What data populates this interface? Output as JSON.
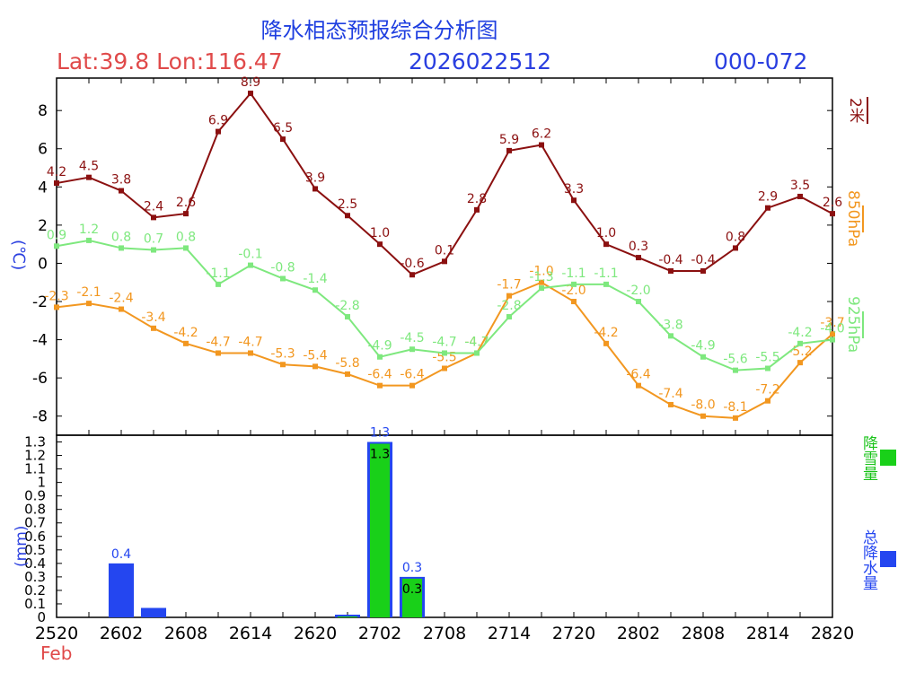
{
  "header": {
    "title": "降水相态预报综合分析图",
    "latlon": "Lat:39.8  Lon:116.47",
    "date": "2026022512",
    "range": "000-072"
  },
  "axes": {
    "temp_unit": "(℃)",
    "precip_unit": "(mm)",
    "month": "Feb"
  },
  "legend": {
    "t2m": "2米",
    "t850": "850hPa",
    "t925": "925hPa",
    "snow": "降雪量",
    "total": "总降水量"
  },
  "colors": {
    "t2m": "#8b1010",
    "t850": "#f29720",
    "t925": "#7ee87e",
    "snow": "#19d019",
    "total": "#2446f0"
  },
  "chart_data": [
    {
      "type": "line",
      "ylabel": "(℃)",
      "ylim": [
        -9,
        9.7
      ],
      "yticks": [
        -8,
        -6,
        -4,
        -2,
        0,
        2,
        4,
        6,
        8
      ],
      "x": [
        "2520",
        "2523",
        "2602",
        "2605",
        "2608",
        "2611",
        "2614",
        "2617",
        "2620",
        "2623",
        "2702",
        "2705",
        "2708",
        "2711",
        "2714",
        "2717",
        "2720",
        "2723",
        "2802",
        "2805",
        "2808",
        "2811",
        "2814",
        "2817",
        "2820"
      ],
      "series": [
        {
          "name": "2米",
          "key": "t2m",
          "values": [
            4.2,
            4.5,
            3.8,
            2.4,
            2.6,
            6.9,
            8.9,
            6.5,
            3.9,
            2.5,
            1.0,
            -0.6,
            0.1,
            2.8,
            5.9,
            6.2,
            3.3,
            1.0,
            0.3,
            -0.4,
            -0.4,
            0.8,
            2.9,
            3.5,
            2.6
          ]
        },
        {
          "name": "850hPa",
          "key": "t850",
          "values": [
            -2.3,
            -2.1,
            -2.4,
            -3.4,
            -4.2,
            -4.7,
            -4.7,
            -5.3,
            -5.4,
            -5.8,
            -6.4,
            -6.4,
            -5.5,
            -4.7,
            -1.7,
            -1.0,
            -2.0,
            -4.2,
            -6.4,
            -7.4,
            -8.0,
            -8.1,
            -7.2,
            -5.2,
            -3.7
          ]
        },
        {
          "name": "925hPa",
          "key": "t925",
          "values": [
            0.9,
            1.2,
            0.8,
            0.7,
            0.8,
            -1.1,
            -0.1,
            -0.8,
            -1.4,
            -2.8,
            -4.9,
            -4.5,
            -4.7,
            -4.7,
            -2.8,
            -1.3,
            -1.1,
            -1.1,
            -2.0,
            -3.8,
            -4.9,
            -5.6,
            -5.5,
            -4.2,
            -4.0
          ]
        }
      ]
    },
    {
      "type": "bar",
      "ylabel": "(mm)",
      "ylim": [
        0,
        1.35
      ],
      "yticks": [
        0,
        0.1,
        0.2,
        0.3,
        0.4,
        0.5,
        0.6,
        0.7,
        0.8,
        0.9,
        1,
        1.1,
        1.2,
        1.3
      ],
      "xticks": [
        "2520",
        "2602",
        "2608",
        "2614",
        "2620",
        "2702",
        "2708",
        "2714",
        "2720",
        "2802",
        "2808",
        "2814",
        "2820"
      ],
      "series": [
        {
          "name": "总降水量",
          "key": "total",
          "values": [
            0,
            0,
            0.4,
            0.07,
            0,
            0,
            0,
            0,
            0,
            0.02,
            1.3,
            0.3,
            0,
            0,
            0,
            0,
            0,
            0,
            0,
            0,
            0,
            0,
            0,
            0,
            0
          ],
          "labels": {
            "2": "0.4",
            "10": "1.3",
            "11": "0.3"
          }
        },
        {
          "name": "降雪量",
          "key": "snow",
          "values": [
            0,
            0,
            0,
            0,
            0,
            0,
            0,
            0,
            0,
            0.02,
            1.3,
            0.3,
            0,
            0,
            0,
            0,
            0,
            0,
            0,
            0,
            0,
            0,
            0,
            0,
            0
          ],
          "labels": {
            "10": "1.3",
            "11": "0.3"
          }
        }
      ]
    }
  ]
}
